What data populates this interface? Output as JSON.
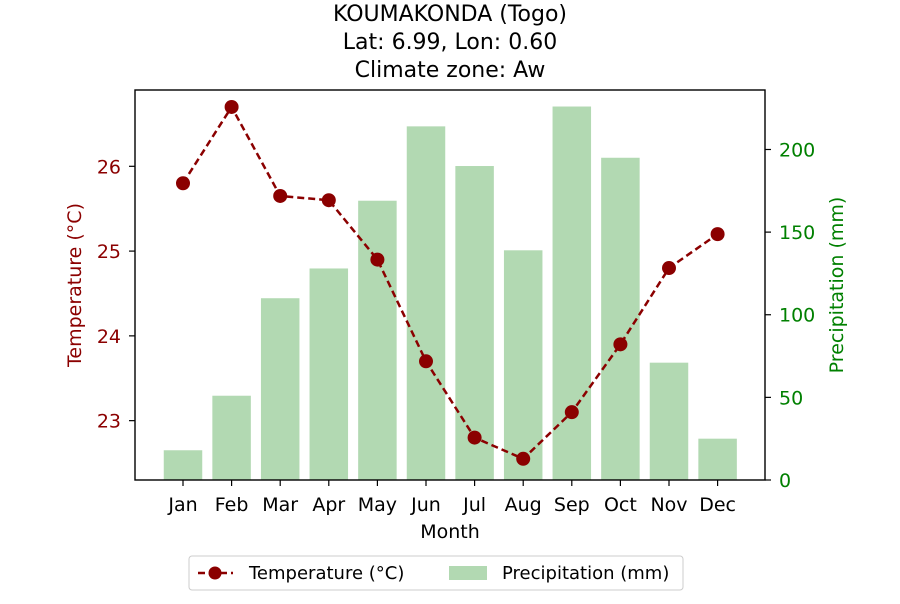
{
  "chart_data": {
    "type": "bar+line",
    "title_lines": [
      "KOUMAKONDA (Togo)",
      "Lat: 6.99, Lon: 0.60",
      "Climate zone: Aw"
    ],
    "xlabel": "Month",
    "ylabel_left": "Temperature (°C)",
    "ylabel_right": "Precipitation (mm)",
    "categories": [
      "Jan",
      "Feb",
      "Mar",
      "Apr",
      "May",
      "Jun",
      "Jul",
      "Aug",
      "Sep",
      "Oct",
      "Nov",
      "Dec"
    ],
    "series": [
      {
        "name": "Temperature (°C)",
        "kind": "line",
        "axis": "left",
        "color": "#8b0000",
        "values": [
          25.8,
          26.7,
          25.65,
          25.6,
          24.9,
          23.7,
          22.8,
          22.55,
          23.1,
          23.9,
          24.8,
          25.2
        ]
      },
      {
        "name": "Precipitation (mm)",
        "kind": "bar",
        "axis": "right",
        "color": "#b2d9b2",
        "values": [
          18,
          51,
          110,
          128,
          169,
          214,
          190,
          139,
          226,
          195,
          71,
          25
        ]
      }
    ],
    "ylim_left": [
      22.3,
      26.9
    ],
    "ylim_right": [
      0,
      236
    ],
    "yticks_left": [
      23,
      24,
      25,
      26
    ],
    "yticks_right": [
      0,
      50,
      100,
      150,
      200
    ],
    "left_axis_color": "#8b0000",
    "right_axis_color": "#008000",
    "legend_position": "bottom-center"
  }
}
